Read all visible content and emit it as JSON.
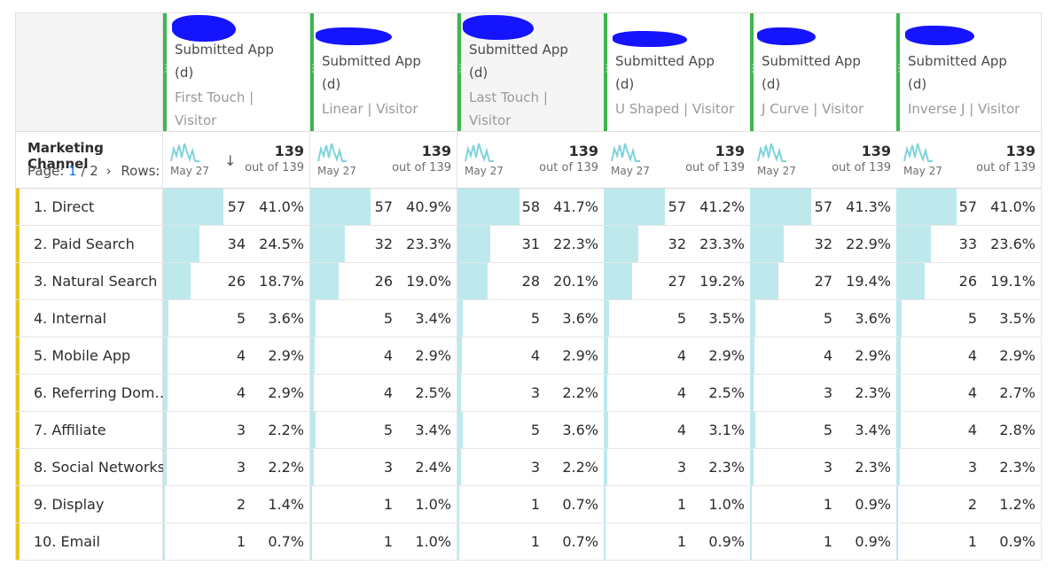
{
  "dimension": {
    "title": "Marketing Channel",
    "page_label": "Page:",
    "page_current": "1",
    "page_sep": "/ 2",
    "page_next_glyph": "›",
    "rows_label": "Rows:",
    "sort_glyph": "↓"
  },
  "metrics": [
    {
      "title": "Submitted App",
      "title2": "(d)",
      "sub1": "First Touch |",
      "sub2": "Visitor",
      "total": "139",
      "outof": "out of 139",
      "date": "May 27"
    },
    {
      "title": "Submitted App",
      "title2": "(d)",
      "sub1": "Linear | Visitor",
      "sub2": "",
      "total": "139",
      "outof": "out of 139",
      "date": "May 27"
    },
    {
      "title": "Submitted App",
      "title2": "(d)",
      "sub1": "Last Touch |",
      "sub2": "Visitor",
      "total": "139",
      "outof": "out of 139",
      "date": "May 27"
    },
    {
      "title": "Submitted App",
      "title2": "(d)",
      "sub1": "U Shaped | Visitor",
      "sub2": "",
      "total": "139",
      "outof": "out of 139",
      "date": "May 27"
    },
    {
      "title": "Submitted App",
      "title2": "(d)",
      "sub1": "J Curve | Visitor",
      "sub2": "",
      "total": "139",
      "outof": "out of 139",
      "date": "May 27"
    },
    {
      "title": "Submitted App",
      "title2": "(d)",
      "sub1": "Inverse J | Visitor",
      "sub2": "",
      "total": "139",
      "outof": "out of 139",
      "date": "May 27"
    }
  ],
  "rows": [
    {
      "label": "1. Direct",
      "cells": [
        [
          "57",
          "41.0%"
        ],
        [
          "57",
          "40.9%"
        ],
        [
          "58",
          "41.7%"
        ],
        [
          "57",
          "41.2%"
        ],
        [
          "57",
          "41.3%"
        ],
        [
          "57",
          "41.0%"
        ]
      ]
    },
    {
      "label": "2. Paid Search",
      "cells": [
        [
          "34",
          "24.5%"
        ],
        [
          "32",
          "23.3%"
        ],
        [
          "31",
          "22.3%"
        ],
        [
          "32",
          "23.3%"
        ],
        [
          "32",
          "22.9%"
        ],
        [
          "33",
          "23.6%"
        ]
      ]
    },
    {
      "label": "3. Natural Search",
      "cells": [
        [
          "26",
          "18.7%"
        ],
        [
          "26",
          "19.0%"
        ],
        [
          "28",
          "20.1%"
        ],
        [
          "27",
          "19.2%"
        ],
        [
          "27",
          "19.4%"
        ],
        [
          "26",
          "19.1%"
        ]
      ]
    },
    {
      "label": "4. Internal",
      "cells": [
        [
          "5",
          "3.6%"
        ],
        [
          "5",
          "3.4%"
        ],
        [
          "5",
          "3.6%"
        ],
        [
          "5",
          "3.5%"
        ],
        [
          "5",
          "3.6%"
        ],
        [
          "5",
          "3.5%"
        ]
      ]
    },
    {
      "label": "5. Mobile App",
      "cells": [
        [
          "4",
          "2.9%"
        ],
        [
          "4",
          "2.9%"
        ],
        [
          "4",
          "2.9%"
        ],
        [
          "4",
          "2.9%"
        ],
        [
          "4",
          "2.9%"
        ],
        [
          "4",
          "2.9%"
        ]
      ]
    },
    {
      "label": "6. Referring Dom…",
      "cells": [
        [
          "4",
          "2.9%"
        ],
        [
          "4",
          "2.5%"
        ],
        [
          "3",
          "2.2%"
        ],
        [
          "4",
          "2.5%"
        ],
        [
          "3",
          "2.3%"
        ],
        [
          "4",
          "2.7%"
        ]
      ]
    },
    {
      "label": "7. Affiliate",
      "cells": [
        [
          "3",
          "2.2%"
        ],
        [
          "5",
          "3.4%"
        ],
        [
          "5",
          "3.6%"
        ],
        [
          "4",
          "3.1%"
        ],
        [
          "5",
          "3.4%"
        ],
        [
          "4",
          "2.8%"
        ]
      ]
    },
    {
      "label": "8. Social Networks",
      "cells": [
        [
          "3",
          "2.2%"
        ],
        [
          "3",
          "2.4%"
        ],
        [
          "3",
          "2.2%"
        ],
        [
          "3",
          "2.3%"
        ],
        [
          "3",
          "2.3%"
        ],
        [
          "3",
          "2.3%"
        ]
      ]
    },
    {
      "label": "9. Display",
      "cells": [
        [
          "2",
          "1.4%"
        ],
        [
          "1",
          "1.0%"
        ],
        [
          "1",
          "0.7%"
        ],
        [
          "1",
          "1.0%"
        ],
        [
          "1",
          "0.9%"
        ],
        [
          "2",
          "1.2%"
        ]
      ]
    },
    {
      "label": "10. Email",
      "cells": [
        [
          "1",
          "0.7%"
        ],
        [
          "1",
          "1.0%"
        ],
        [
          "1",
          "0.7%"
        ],
        [
          "1",
          "0.9%"
        ],
        [
          "1",
          "0.9%"
        ],
        [
          "1",
          "0.9%"
        ]
      ]
    }
  ],
  "colors": {
    "accent_green": "#3fb64f",
    "bar_fill": "#bde9ed",
    "row_tag": "#e6c41f",
    "redaction": "#1414ff",
    "link_blue": "#1473e6",
    "sparkline": "#7fd3dc"
  }
}
